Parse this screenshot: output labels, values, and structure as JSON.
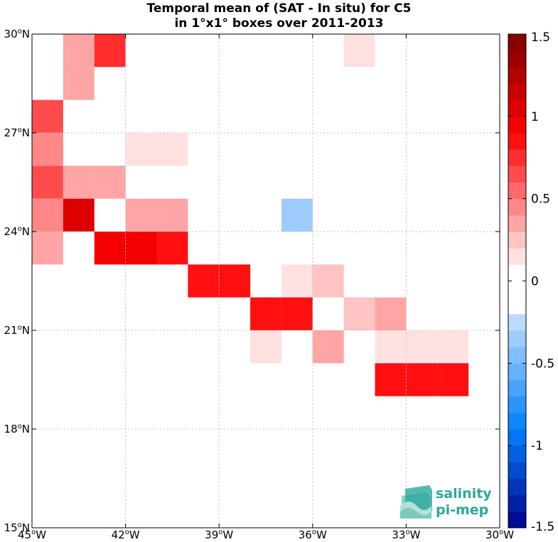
{
  "title_line1": "Temporal mean of (SAT - In situ) for C5",
  "title_line2": "in 1°x1° boxes over 2011-2013",
  "logo": {
    "line1": "salinity",
    "line2": "pi-mep",
    "color": "#2aa89c"
  },
  "chart_data": {
    "type": "heatmap",
    "title": "Temporal mean of (SAT - In situ) for C5 in 1°x1° boxes over 2011-2013",
    "xlim": [
      -45,
      -30
    ],
    "ylim": [
      15,
      30
    ],
    "x_ticks": [
      -45,
      -42,
      -39,
      -36,
      -33,
      -30
    ],
    "x_tick_labels": [
      "45°W",
      "42°W",
      "39°W",
      "36°W",
      "33°W",
      "30°W"
    ],
    "y_ticks": [
      15,
      18,
      21,
      24,
      27,
      30
    ],
    "y_tick_labels": [
      "15°N",
      "18°N",
      "21°N",
      "24°N",
      "27°N",
      "30°N"
    ],
    "grid": true,
    "cell_size_deg": 1,
    "colorbar": {
      "range": [
        -1.5,
        1.5
      ],
      "n_levels": 30,
      "ticks": [
        1.5,
        1,
        0.5,
        0,
        -0.5,
        -1,
        -1.5
      ],
      "tick_labels": [
        "1.5",
        "1",
        "0.5",
        "0",
        "-0.5",
        "-1",
        "-1.5"
      ],
      "cmap": "blue-white-red"
    },
    "cells": [
      {
        "lon": -44,
        "lat": 29,
        "value": 0.4
      },
      {
        "lon": -43,
        "lat": 29,
        "value": 0.7
      },
      {
        "lon": -35,
        "lat": 29,
        "value": 0.15
      },
      {
        "lon": -44,
        "lat": 28,
        "value": 0.4
      },
      {
        "lon": -45,
        "lat": 27,
        "value": 0.6
      },
      {
        "lon": -45,
        "lat": 26,
        "value": 0.45
      },
      {
        "lon": -42,
        "lat": 26,
        "value": 0.15
      },
      {
        "lon": -41,
        "lat": 26,
        "value": 0.15
      },
      {
        "lon": -45,
        "lat": 25,
        "value": 0.6
      },
      {
        "lon": -44,
        "lat": 25,
        "value": 0.35
      },
      {
        "lon": -43,
        "lat": 25,
        "value": 0.35
      },
      {
        "lon": -39,
        "lat": 25,
        "value": -0.15
      },
      {
        "lon": -38,
        "lat": 25,
        "value": -0.15
      },
      {
        "lon": -45,
        "lat": 24,
        "value": 0.45
      },
      {
        "lon": -44,
        "lat": 24,
        "value": 1.0
      },
      {
        "lon": -42,
        "lat": 24,
        "value": 0.3
      },
      {
        "lon": -41,
        "lat": 24,
        "value": 0.3
      },
      {
        "lon": -39,
        "lat": 24,
        "value": -0.15
      },
      {
        "lon": -37,
        "lat": 24,
        "value": -0.3
      },
      {
        "lon": -45,
        "lat": 23,
        "value": 0.35
      },
      {
        "lon": -43,
        "lat": 23,
        "value": 0.95
      },
      {
        "lon": -42,
        "lat": 23,
        "value": 0.95
      },
      {
        "lon": -41,
        "lat": 23,
        "value": 0.85
      },
      {
        "lon": -40,
        "lat": 22,
        "value": 0.85
      },
      {
        "lon": -39,
        "lat": 22,
        "value": 0.9
      },
      {
        "lon": -37,
        "lat": 22,
        "value": 0.15
      },
      {
        "lon": -36,
        "lat": 22,
        "value": 0.25
      },
      {
        "lon": -45,
        "lat": 21,
        "value": -0.15
      },
      {
        "lon": -42,
        "lat": 21,
        "value": -0.15
      },
      {
        "lon": -38,
        "lat": 21,
        "value": 0.85
      },
      {
        "lon": -37,
        "lat": 21,
        "value": 0.85
      },
      {
        "lon": -35,
        "lat": 21,
        "value": 0.25
      },
      {
        "lon": -34,
        "lat": 21,
        "value": 0.4
      },
      {
        "lon": -41,
        "lat": 20,
        "value": -0.15
      },
      {
        "lon": -38,
        "lat": 20,
        "value": 0.15
      },
      {
        "lon": -36,
        "lat": 20,
        "value": 0.4
      },
      {
        "lon": -34,
        "lat": 20,
        "value": 0.15
      },
      {
        "lon": -33,
        "lat": 20,
        "value": 0.15
      },
      {
        "lon": -32,
        "lat": 20,
        "value": 0.15
      },
      {
        "lon": -31,
        "lat": 20,
        "value": -0.15
      },
      {
        "lon": -34,
        "lat": 19,
        "value": 0.85
      },
      {
        "lon": -33,
        "lat": 19,
        "value": 0.85
      },
      {
        "lon": -32,
        "lat": 19,
        "value": 0.9
      }
    ]
  }
}
